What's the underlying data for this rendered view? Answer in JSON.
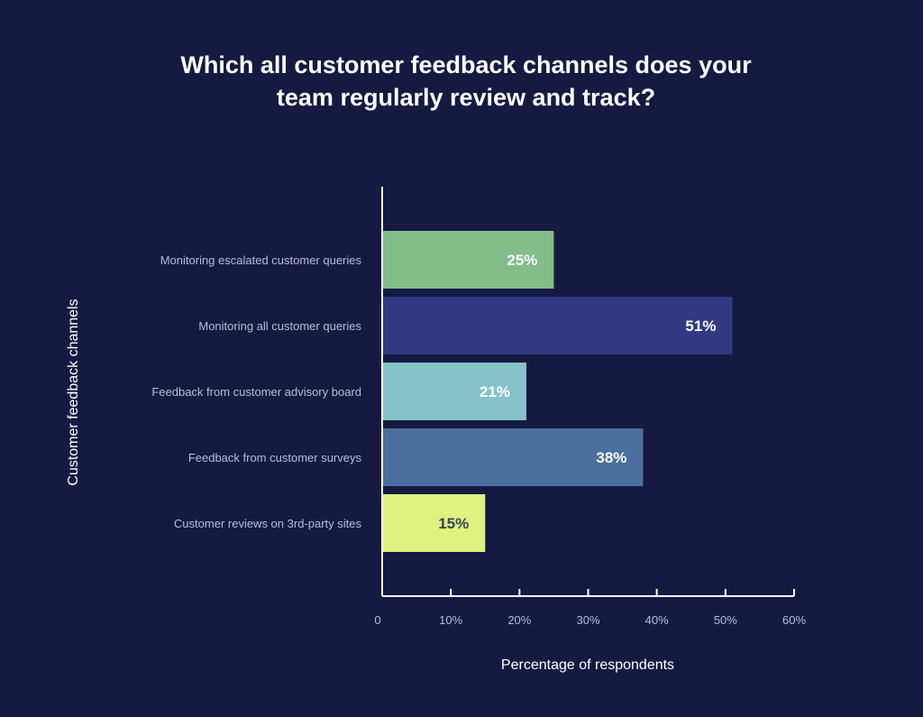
{
  "chart_data": {
    "type": "bar",
    "orientation": "horizontal",
    "title": "Which all customer feedback channels does your team regularly review and track?",
    "title_lines": [
      "Which all customer feedback channels does your",
      "team regularly review and track?"
    ],
    "xlabel": "Percentage of respondents",
    "ylabel": "Customer feedback channels",
    "xlim": [
      0,
      60
    ],
    "xticks": [
      0,
      10,
      20,
      30,
      40,
      50,
      60
    ],
    "xtick_labels": [
      "0",
      "10%",
      "20%",
      "30%",
      "40%",
      "50%",
      "60%"
    ],
    "categories": [
      "Monitoring escalated customer queries",
      "Monitoring all customer queries",
      "Feedback from customer advisory board",
      "Feedback from customer surveys",
      "Customer reviews on 3rd-party sites"
    ],
    "values": [
      25,
      51,
      21,
      38,
      15
    ],
    "value_labels": [
      "25%",
      "51%",
      "21%",
      "38%",
      "15%"
    ],
    "colors": [
      "#82bd8a",
      "#323a84",
      "#85c3c9",
      "#4b6f9e",
      "#def27d"
    ],
    "value_label_colors": [
      "#ffffff",
      "#ffffff",
      "#ffffff",
      "#ffffff",
      "#3c4160"
    ],
    "background": "#161a41",
    "grid": false
  }
}
